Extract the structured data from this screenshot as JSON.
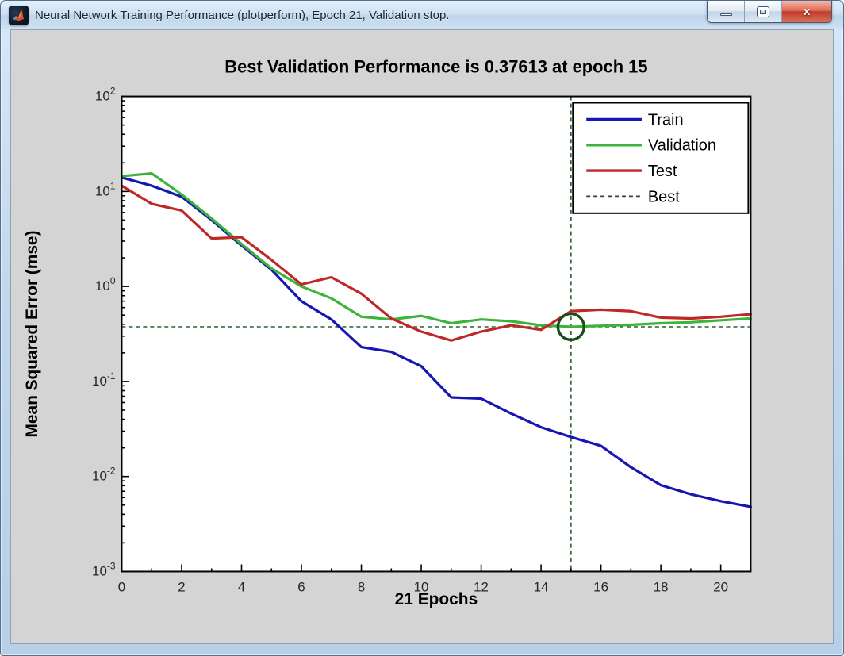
{
  "window": {
    "title": "Neural Network Training Performance (plotperform), Epoch 21, Validation stop.",
    "icon": "matlab-logo",
    "buttons": {
      "minimize": "minimize",
      "restore": "restore",
      "close": "close"
    },
    "close_glyph": "x"
  },
  "colors": {
    "figure_background": "#d4d4d4",
    "plot_background": "#ffffff",
    "axis": "#000000",
    "tick_label": "#262626",
    "titlebar_accent": "#c7dcf0",
    "close_button": "#c03c29"
  },
  "chart_data": {
    "type": "line",
    "title": "Best Validation Performance is 0.37613 at epoch 15",
    "xlabel": "21 Epochs",
    "ylabel": "Mean Squared Error  (mse)",
    "x_scale": "linear",
    "y_scale": "log",
    "xlim": [
      0,
      21
    ],
    "ylim_exp": [
      -3,
      2
    ],
    "x_major_ticks": [
      0,
      2,
      4,
      6,
      8,
      10,
      12,
      14,
      16,
      18,
      20
    ],
    "x_minor_ticks": [
      1,
      3,
      5,
      7,
      9,
      11,
      13,
      15,
      17,
      19,
      21
    ],
    "y_tick_base": "10",
    "y_tick_exponents": [
      2,
      1,
      0,
      -1,
      -2,
      -3
    ],
    "grid": false,
    "legend_position": "top-right",
    "x": [
      0,
      1,
      2,
      3,
      4,
      5,
      6,
      7,
      8,
      9,
      10,
      11,
      12,
      13,
      14,
      15,
      16,
      17,
      18,
      19,
      20,
      21
    ],
    "series": [
      {
        "name": "Train",
        "color": "#1616b4",
        "values": [
          14.0,
          11.5,
          8.8,
          5.0,
          2.7,
          1.5,
          0.7,
          0.45,
          0.23,
          0.205,
          0.145,
          0.068,
          0.066,
          0.046,
          0.033,
          0.026,
          0.021,
          0.0125,
          0.0081,
          0.0065,
          0.0055,
          0.0048
        ]
      },
      {
        "name": "Validation",
        "color": "#3cb43c",
        "values": [
          14.5,
          15.5,
          9.3,
          5.2,
          2.8,
          1.55,
          1.0,
          0.75,
          0.48,
          0.45,
          0.49,
          0.41,
          0.45,
          0.43,
          0.39,
          0.37613,
          0.385,
          0.395,
          0.41,
          0.42,
          0.44,
          0.46
        ]
      },
      {
        "name": "Test",
        "color": "#c02828",
        "values": [
          11.5,
          7.4,
          6.3,
          3.2,
          3.3,
          1.9,
          1.05,
          1.25,
          0.84,
          0.46,
          0.335,
          0.27,
          0.335,
          0.39,
          0.35,
          0.55,
          0.57,
          0.55,
          0.47,
          0.46,
          0.48,
          0.51
        ]
      }
    ],
    "best": {
      "name": "Best",
      "color": "#2f5f2f",
      "epoch": 15,
      "value": 0.37613,
      "marker": "circle"
    },
    "legend": [
      "Train",
      "Validation",
      "Test",
      "Best"
    ]
  }
}
